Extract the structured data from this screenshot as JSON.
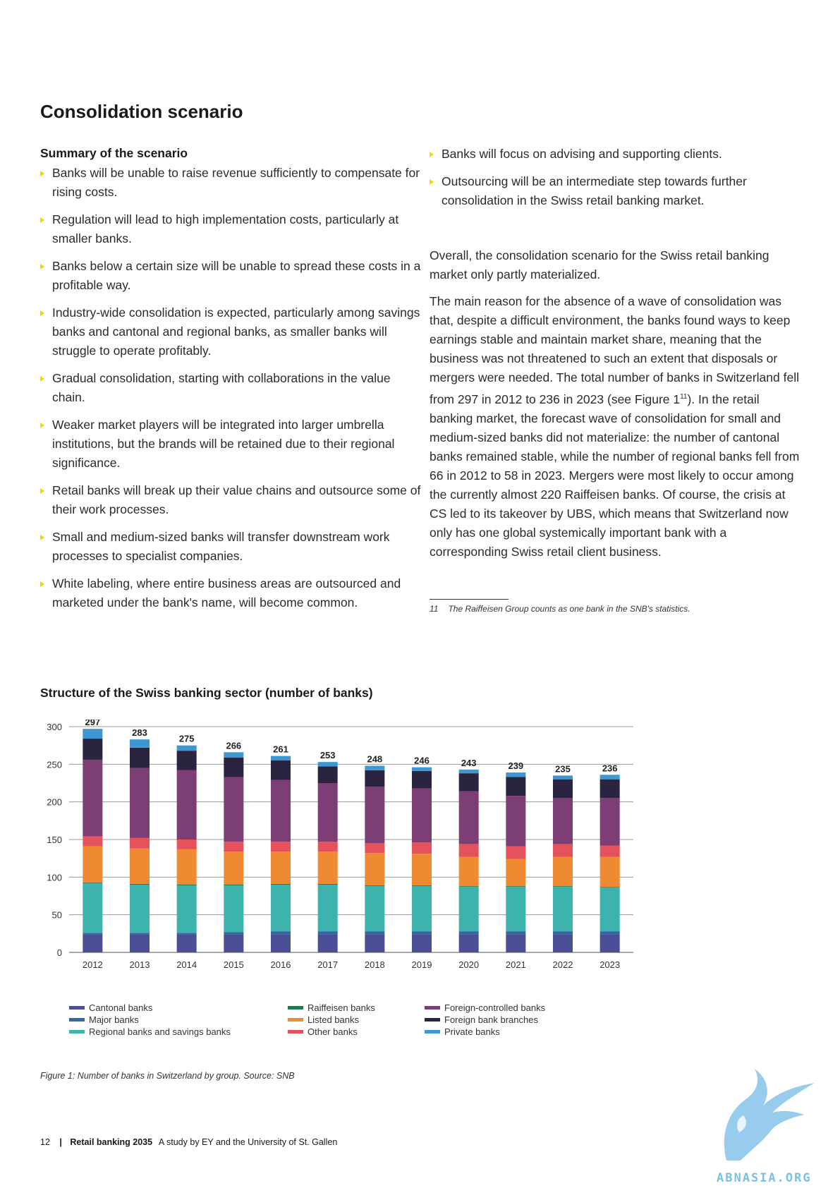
{
  "title": "Consolidation scenario",
  "summary": {
    "heading": "Summary of the scenario",
    "left_bullets": [
      "Banks will be unable to raise revenue sufficiently to compensate for rising costs.",
      "Regulation will lead to high implementation costs, particularly at smaller banks.",
      "Banks below a certain size will be unable to spread these costs in a profitable way.",
      "Industry-wide consolidation is expected, particularly among savings banks and cantonal and regional banks, as smaller banks will struggle to operate profitably.",
      "Gradual consolidation, starting with collaborations in the value chain.",
      "Weaker market players will be integrated into larger umbrella institutions, but the brands will be retained due to their regional significance.",
      "Retail banks will break up their value chains and outsource some of their work processes.",
      "Small and medium-sized banks will transfer downstream work processes to specialist companies.",
      "White labeling, where entire business areas are outsourced and marketed under the bank's name, will become common."
    ],
    "right_bullets": [
      "Banks will focus on advising and supporting clients.",
      "Outsourcing will be an intermediate step towards further consolidation in the Swiss retail banking market."
    ]
  },
  "paragraphs": {
    "p1": "Overall, the consolidation scenario for the Swiss retail banking market only partly materialized.",
    "p2_before": "The main reason for the absence of a wave of consolidation was that, despite a difficult environment, the banks found ways to keep earnings stable and maintain market share, meaning that the business was not threatened to such an extent that disposals or mergers were needed. The total number of banks in Switzerland fell from 297 in 2012 to 236 in 2023 (see Figure 1",
    "p2_sup": "11",
    "p2_after": "). In the retail banking market, the forecast wave of consolidation for small and medium-sized banks did not materialize: the number of cantonal banks remained stable, while the number of regional banks fell from 66 in 2012 to 58 in 2023. Mergers were most likely to occur among the currently almost 220 Raiffeisen banks. Of course, the crisis at CS led to its takeover by UBS, which means that Switzerland now only has one global systemically important bank with a corresponding Swiss retail client business."
  },
  "footnote": {
    "number": "11",
    "text": "The Raiffeisen Group counts as one bank in the SNB's statistics."
  },
  "chart_title": "Structure of the Swiss banking sector (number of banks)",
  "chart_data": {
    "type": "bar",
    "stacked": true,
    "categories": [
      "2012",
      "2013",
      "2014",
      "2015",
      "2016",
      "2017",
      "2018",
      "2019",
      "2020",
      "2021",
      "2022",
      "2023"
    ],
    "ylim": [
      0,
      300
    ],
    "yticks": [
      0,
      50,
      100,
      150,
      200,
      250,
      300
    ],
    "grid": true,
    "legend_placement": "bottom",
    "totals": [
      297,
      283,
      275,
      266,
      261,
      253,
      248,
      246,
      243,
      239,
      235,
      236
    ],
    "series": [
      {
        "name": "Cantonal banks",
        "color": "#4b4f96",
        "values": [
          24,
          24,
          24,
          24,
          24,
          24,
          24,
          24,
          24,
          24,
          24,
          24
        ]
      },
      {
        "name": "Major banks",
        "color": "#2f6aa3",
        "values": [
          2,
          2,
          2,
          3,
          4,
          4,
          4,
          4,
          4,
          4,
          4,
          4
        ]
      },
      {
        "name": "Regional banks and savings banks",
        "color": "#3cb4ad",
        "values": [
          66,
          64,
          63,
          62,
          62,
          62,
          60,
          60,
          59,
          59,
          59,
          58
        ]
      },
      {
        "name": "Raiffeisen banks",
        "color": "#1c7d4b",
        "values": [
          1,
          1,
          1,
          1,
          1,
          1,
          1,
          1,
          1,
          1,
          1,
          1
        ]
      },
      {
        "name": "Listed banks",
        "color": "#f08a32",
        "values": [
          48,
          47,
          47,
          44,
          43,
          43,
          43,
          42,
          39,
          36,
          39,
          40
        ]
      },
      {
        "name": "Other banks",
        "color": "#e5525b",
        "values": [
          13,
          14,
          13,
          13,
          13,
          13,
          13,
          15,
          17,
          17,
          17,
          15
        ]
      },
      {
        "name": "Foreign-controlled banks",
        "color": "#7c3e74",
        "values": [
          102,
          93,
          92,
          86,
          82,
          78,
          75,
          72,
          70,
          67,
          61,
          63
        ]
      },
      {
        "name": "Foreign bank branches",
        "color": "#2a2440",
        "values": [
          28,
          27,
          26,
          26,
          26,
          22,
          22,
          23,
          24,
          25,
          25,
          25
        ]
      },
      {
        "name": "Private banks",
        "color": "#3d97d2",
        "values": [
          13,
          11,
          7,
          7,
          6,
          6,
          6,
          5,
          5,
          6,
          5,
          6
        ]
      }
    ]
  },
  "legend_columns": [
    [
      "Cantonal banks",
      "Major banks",
      "Regional banks and savings banks"
    ],
    [
      "Raiffeisen banks",
      "Listed banks",
      "Other banks"
    ],
    [
      "Foreign-controlled banks",
      "Foreign bank branches",
      "Private banks"
    ]
  ],
  "figure_caption": "Figure 1: Number of banks in Switzerland by group. Source: SNB",
  "footer": {
    "page": "12",
    "separator": "|",
    "publication": "Retail banking 2035",
    "subtitle": "A study by EY and the University of St. Gallen"
  },
  "watermark_text": "ABNASIA.ORG"
}
